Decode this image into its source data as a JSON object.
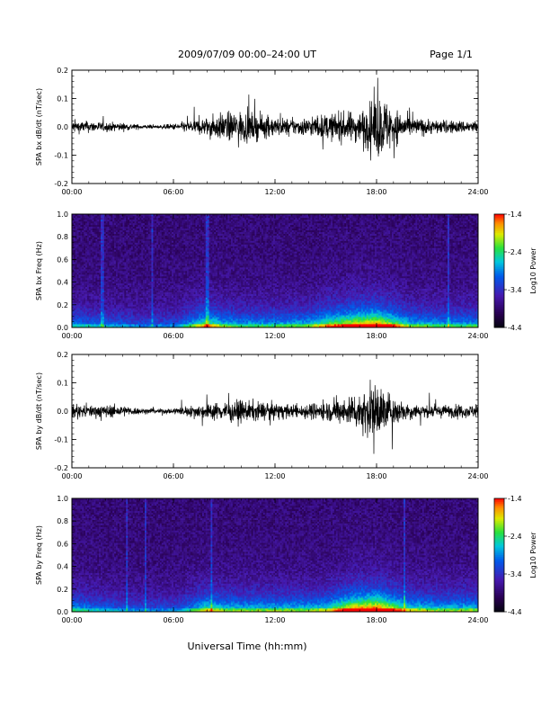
{
  "header": {
    "title": "2009/07/09  00:00–24:00 UT",
    "page": "Page 1/1"
  },
  "x_axis_label": "Universal Time (hh:mm)",
  "chart_data": [
    {
      "type": "line",
      "ylabel": "SPA bx dB/dt (nT/sec)",
      "xlim": [
        0,
        24
      ],
      "ylim": [
        -0.2,
        0.2
      ],
      "x_ticks": [
        "00:00",
        "06:00",
        "12:00",
        "18:00",
        "24:00"
      ],
      "y_ticks": [
        "-0.2",
        "-0.1",
        "0.0",
        "0.1",
        "0.2"
      ],
      "envelope": {
        "x_hours": [
          0,
          1,
          2,
          3,
          4,
          5,
          6,
          7,
          8,
          9,
          10,
          11,
          12,
          13,
          14,
          15,
          16,
          17,
          17.5,
          18,
          18.5,
          19,
          20,
          21,
          22,
          23,
          24
        ],
        "amplitude": [
          0.04,
          0.035,
          0.03,
          0.025,
          0.015,
          0.01,
          0.02,
          0.04,
          0.06,
          0.09,
          0.1,
          0.08,
          0.06,
          0.05,
          0.06,
          0.08,
          0.09,
          0.1,
          0.14,
          0.2,
          0.18,
          0.12,
          0.06,
          0.05,
          0.04,
          0.04,
          0.04
        ]
      }
    },
    {
      "type": "heatmap",
      "ylabel": "SPA bx Freq (Hz)",
      "xlim": [
        0,
        24
      ],
      "ylim": [
        0,
        1.0
      ],
      "x_ticks": [
        "00:00",
        "06:00",
        "12:00",
        "18:00",
        "24:00"
      ],
      "y_ticks": [
        "0.0",
        "0.2",
        "0.4",
        "0.6",
        "0.8",
        "1.0"
      ],
      "colorbar": {
        "label": "Log10 Power",
        "ticks": [
          "-1.4",
          "-2.4",
          "-3.4",
          "-4.4"
        ],
        "range": [
          -4.4,
          -1.4
        ]
      },
      "activity": {
        "x_hours": [
          0,
          2,
          4,
          6,
          7,
          8,
          9,
          10,
          12,
          14,
          15,
          16,
          17,
          18,
          19,
          20,
          22,
          24
        ],
        "level": [
          0.35,
          0.3,
          0.25,
          0.25,
          0.4,
          0.6,
          0.45,
          0.4,
          0.4,
          0.45,
          0.6,
          0.7,
          0.8,
          0.85,
          0.65,
          0.45,
          0.4,
          0.4
        ]
      }
    },
    {
      "type": "line",
      "ylabel": "SPA by dB/dt (nT/sec)",
      "xlim": [
        0,
        24
      ],
      "ylim": [
        -0.2,
        0.2
      ],
      "x_ticks": [
        "00:00",
        "06:00",
        "12:00",
        "18:00",
        "24:00"
      ],
      "y_ticks": [
        "-0.2",
        "-0.1",
        "0.0",
        "0.1",
        "0.2"
      ],
      "envelope": {
        "x_hours": [
          0,
          1,
          2,
          3,
          4,
          5,
          6,
          7,
          8,
          9,
          10,
          11,
          12,
          13,
          14,
          15,
          16,
          17,
          17.5,
          18,
          18.5,
          19,
          20,
          21,
          22,
          23,
          24
        ],
        "amplitude": [
          0.04,
          0.04,
          0.04,
          0.035,
          0.02,
          0.015,
          0.02,
          0.035,
          0.05,
          0.06,
          0.07,
          0.06,
          0.05,
          0.04,
          0.05,
          0.06,
          0.08,
          0.12,
          0.16,
          0.18,
          0.14,
          0.09,
          0.05,
          0.04,
          0.04,
          0.04,
          0.04
        ]
      }
    },
    {
      "type": "heatmap",
      "ylabel": "SPA by Freq (Hz)",
      "xlim": [
        0,
        24
      ],
      "ylim": [
        0,
        1.0
      ],
      "x_ticks": [
        "00:00",
        "06:00",
        "12:00",
        "18:00",
        "24:00"
      ],
      "y_ticks": [
        "0.0",
        "0.2",
        "0.4",
        "0.6",
        "0.8",
        "1.0"
      ],
      "colorbar": {
        "label": "Log10 Power",
        "ticks": [
          "-1.4",
          "-2.4",
          "-3.4",
          "-4.4"
        ],
        "range": [
          -4.4,
          -1.4
        ]
      },
      "activity": {
        "x_hours": [
          0,
          2,
          4,
          6,
          7,
          8,
          9,
          10,
          12,
          14,
          15,
          16,
          17,
          18,
          19,
          20,
          22,
          24
        ],
        "level": [
          0.4,
          0.3,
          0.25,
          0.25,
          0.35,
          0.55,
          0.45,
          0.45,
          0.45,
          0.45,
          0.5,
          0.7,
          0.85,
          0.9,
          0.7,
          0.5,
          0.45,
          0.45
        ]
      }
    }
  ]
}
